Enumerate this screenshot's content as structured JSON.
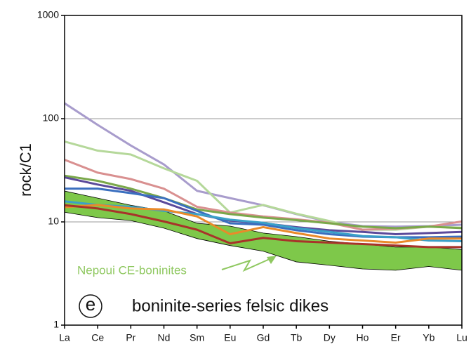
{
  "chart_data": {
    "type": "line",
    "ylabel": "rock/C1",
    "categories": [
      "La",
      "Ce",
      "Pr",
      "Nd",
      "Sm",
      "Eu",
      "Gd",
      "Tb",
      "Dy",
      "Ho",
      "Er",
      "Yb",
      "Lu"
    ],
    "log_y": true,
    "ylim": [
      1,
      1000
    ],
    "yticks": [
      1,
      10,
      100,
      1000
    ],
    "grid": true,
    "band": {
      "name": "Nepoui CE-boninites",
      "color": "#7ec84a",
      "upper": [
        19.9,
        17,
        14.5,
        12.8,
        9.7,
        9.1,
        7.8,
        7.2,
        6.5,
        6.1,
        5.7,
        5.7,
        5.4
      ],
      "lower": [
        12.4,
        11,
        10.3,
        8.7,
        6.9,
        5.9,
        5.2,
        4.1,
        3.8,
        3.5,
        3.4,
        3.7,
        3.4
      ]
    },
    "series": [
      {
        "color": "#a89ccc",
        "values": [
          141,
          87,
          55,
          36,
          20,
          17,
          14.5,
          11.9,
          10,
          9.1,
          9,
          9.1,
          9.4
        ]
      },
      {
        "color": "#b5d89a",
        "values": [
          60,
          49,
          45,
          33,
          25,
          12.3,
          14.6,
          12,
          10.2,
          8.4,
          8.4,
          9,
          8.8
        ]
      },
      {
        "color": "#d99090",
        "values": [
          40,
          30,
          26,
          21,
          14,
          12.3,
          11.3,
          10.6,
          9.8,
          8.4,
          8.6,
          9,
          10.1
        ]
      },
      {
        "color": "#7aa84a",
        "values": [
          28,
          25,
          21,
          17,
          13.2,
          11.9,
          11,
          10.4,
          9.7,
          9,
          8.7,
          9,
          8.7
        ]
      },
      {
        "color": "#5b4a9a",
        "values": [
          27,
          23,
          20,
          15.5,
          11.9,
          10.3,
          9.7,
          8.9,
          8.3,
          8,
          7.6,
          7.8,
          8
        ]
      },
      {
        "color": "#3a6fbf",
        "values": [
          21,
          21,
          19,
          17,
          12.8,
          9.7,
          9.4,
          8.3,
          7.6,
          7.2,
          7.1,
          7.1,
          7.2
        ]
      },
      {
        "color": "#3aa0c8",
        "values": [
          15.8,
          14.6,
          14,
          12.8,
          11.9,
          10.5,
          9.8,
          8.7,
          8,
          7.3,
          7.1,
          6.6,
          6.5
        ]
      },
      {
        "color": "#e98a2a",
        "values": [
          13.9,
          14.6,
          13.5,
          13.2,
          11.3,
          7.6,
          8.9,
          7.8,
          6.9,
          6.6,
          6.3,
          6.9,
          6.9
        ]
      },
      {
        "color": "#a8332a",
        "values": [
          14.5,
          13.5,
          11.9,
          10.1,
          8.4,
          6.2,
          7,
          6.5,
          6.3,
          6.1,
          5.9,
          5.7,
          5.7
        ]
      }
    ],
    "annotations": [
      "e",
      "boninite-series felsic dikes"
    ]
  }
}
